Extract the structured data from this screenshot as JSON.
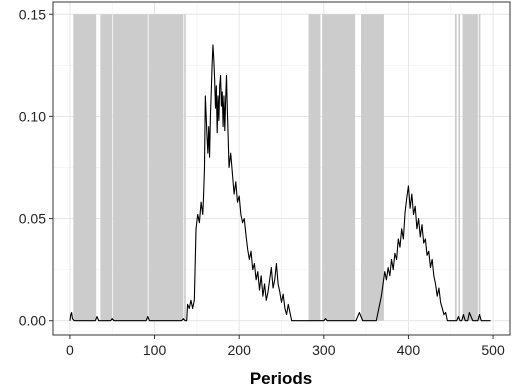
{
  "chart_data": {
    "type": "line",
    "title": "",
    "xlabel": "Periods",
    "ylabel": "",
    "xlim": [
      -20,
      520
    ],
    "ylim": [
      -0.007,
      0.156
    ],
    "grid": true,
    "x_ticks": [
      0,
      100,
      200,
      300,
      400,
      500
    ],
    "y_ticks": [
      0.0,
      0.05,
      0.1,
      0.15
    ],
    "x_tick_labels": [
      "0",
      "100",
      "200",
      "300",
      "400",
      "500"
    ],
    "y_tick_labels": [
      "0.00",
      "0.05",
      "0.10",
      "0.15"
    ],
    "shaded_regions": {
      "color": "#cccccc",
      "y_range": [
        0,
        0.15
      ],
      "intervals": [
        [
          4,
          31
        ],
        [
          36,
          50
        ],
        [
          51,
          92
        ],
        [
          93,
          134
        ],
        [
          135,
          137
        ],
        [
          282,
          296
        ],
        [
          298,
          337
        ],
        [
          344,
          371
        ],
        [
          455,
          457
        ],
        [
          459,
          461
        ],
        [
          464,
          482
        ],
        [
          483,
          485
        ]
      ]
    },
    "series": [
      {
        "color": "#000000",
        "points": [
          [
            0,
            0.0
          ],
          [
            1,
            0.003
          ],
          [
            2,
            0.004
          ],
          [
            3,
            0.001
          ],
          [
            5,
            0.0
          ],
          [
            30,
            0.0
          ],
          [
            32,
            0.002
          ],
          [
            34,
            0.0
          ],
          [
            48,
            0.0
          ],
          [
            50,
            0.001
          ],
          [
            52,
            0.0
          ],
          [
            90,
            0.0
          ],
          [
            92,
            0.002
          ],
          [
            94,
            0.0
          ],
          [
            132,
            0.0
          ],
          [
            134,
            0.001
          ],
          [
            136,
            0.0
          ],
          [
            138,
            0.0
          ],
          [
            139,
            0.008
          ],
          [
            141,
            0.006
          ],
          [
            143,
            0.01
          ],
          [
            145,
            0.006
          ],
          [
            147,
            0.01
          ],
          [
            149,
            0.045
          ],
          [
            151,
            0.052
          ],
          [
            153,
            0.048
          ],
          [
            155,
            0.058
          ],
          [
            157,
            0.052
          ],
          [
            158,
            0.062
          ],
          [
            159,
            0.075
          ],
          [
            160,
            0.11
          ],
          [
            161,
            0.1
          ],
          [
            162,
            0.09
          ],
          [
            163,
            0.082
          ],
          [
            164,
            0.095
          ],
          [
            165,
            0.08
          ],
          [
            166,
            0.1
          ],
          [
            167,
            0.112
          ],
          [
            168,
            0.125
          ],
          [
            169,
            0.135
          ],
          [
            170,
            0.128
          ],
          [
            171,
            0.118
          ],
          [
            172,
            0.104
          ],
          [
            173,
            0.115
          ],
          [
            174,
            0.092
          ],
          [
            175,
            0.11
          ],
          [
            176,
            0.098
          ],
          [
            177,
            0.115
          ],
          [
            178,
            0.12
          ],
          [
            179,
            0.105
          ],
          [
            180,
            0.112
          ],
          [
            181,
            0.095
          ],
          [
            182,
            0.11
          ],
          [
            183,
            0.093
          ],
          [
            184,
            0.108
          ],
          [
            185,
            0.12
          ],
          [
            186,
            0.103
          ],
          [
            187,
            0.09
          ],
          [
            188,
            0.075
          ],
          [
            190,
            0.082
          ],
          [
            192,
            0.072
          ],
          [
            194,
            0.062
          ],
          [
            196,
            0.068
          ],
          [
            198,
            0.058
          ],
          [
            200,
            0.061
          ],
          [
            202,
            0.052
          ],
          [
            204,
            0.048
          ],
          [
            206,
            0.05
          ],
          [
            208,
            0.042
          ],
          [
            210,
            0.035
          ],
          [
            212,
            0.03
          ],
          [
            214,
            0.034
          ],
          [
            216,
            0.025
          ],
          [
            218,
            0.028
          ],
          [
            220,
            0.02
          ],
          [
            222,
            0.024
          ],
          [
            224,
            0.015
          ],
          [
            226,
            0.022
          ],
          [
            228,
            0.012
          ],
          [
            230,
            0.018
          ],
          [
            232,
            0.01
          ],
          [
            234,
            0.014
          ],
          [
            236,
            0.02
          ],
          [
            238,
            0.026
          ],
          [
            240,
            0.016
          ],
          [
            242,
            0.02
          ],
          [
            244,
            0.028
          ],
          [
            246,
            0.018
          ],
          [
            248,
            0.014
          ],
          [
            250,
            0.009
          ],
          [
            252,
            0.013
          ],
          [
            254,
            0.006
          ],
          [
            256,
            0.003
          ],
          [
            258,
            0.008
          ],
          [
            260,
            0.004
          ],
          [
            262,
            0.0
          ],
          [
            300,
            0.0
          ],
          [
            302,
            0.001
          ],
          [
            304,
            0.0
          ],
          [
            338,
            0.0
          ],
          [
            340,
            0.002
          ],
          [
            342,
            0.004
          ],
          [
            344,
            0.002
          ],
          [
            346,
            0.0
          ],
          [
            362,
            0.0
          ],
          [
            364,
            0.004
          ],
          [
            366,
            0.008
          ],
          [
            368,
            0.012
          ],
          [
            370,
            0.018
          ],
          [
            372,
            0.024
          ],
          [
            374,
            0.02
          ],
          [
            376,
            0.026
          ],
          [
            378,
            0.022
          ],
          [
            380,
            0.03
          ],
          [
            382,
            0.025
          ],
          [
            384,
            0.033
          ],
          [
            386,
            0.03
          ],
          [
            388,
            0.04
          ],
          [
            390,
            0.036
          ],
          [
            392,
            0.045
          ],
          [
            394,
            0.04
          ],
          [
            396,
            0.053
          ],
          [
            398,
            0.06
          ],
          [
            400,
            0.066
          ],
          [
            402,
            0.055
          ],
          [
            404,
            0.062
          ],
          [
            406,
            0.052
          ],
          [
            408,
            0.056
          ],
          [
            410,
            0.045
          ],
          [
            412,
            0.05
          ],
          [
            414,
            0.041
          ],
          [
            416,
            0.047
          ],
          [
            418,
            0.038
          ],
          [
            420,
            0.04
          ],
          [
            422,
            0.032
          ],
          [
            424,
            0.034
          ],
          [
            426,
            0.026
          ],
          [
            428,
            0.03
          ],
          [
            430,
            0.022
          ],
          [
            432,
            0.018
          ],
          [
            434,
            0.012
          ],
          [
            436,
            0.016
          ],
          [
            438,
            0.009
          ],
          [
            440,
            0.006
          ],
          [
            442,
            0.003
          ],
          [
            444,
            0.004
          ],
          [
            446,
            0.0
          ],
          [
            457,
            0.0
          ],
          [
            459,
            0.002
          ],
          [
            461,
            0.0
          ],
          [
            463,
            0.0
          ],
          [
            465,
            0.003
          ],
          [
            467,
            0.0
          ],
          [
            470,
            0.0
          ],
          [
            472,
            0.004
          ],
          [
            474,
            0.002
          ],
          [
            476,
            0.0
          ],
          [
            482,
            0.0
          ],
          [
            484,
            0.003
          ],
          [
            486,
            0.0
          ],
          [
            497,
            0.0
          ]
        ]
      }
    ]
  }
}
